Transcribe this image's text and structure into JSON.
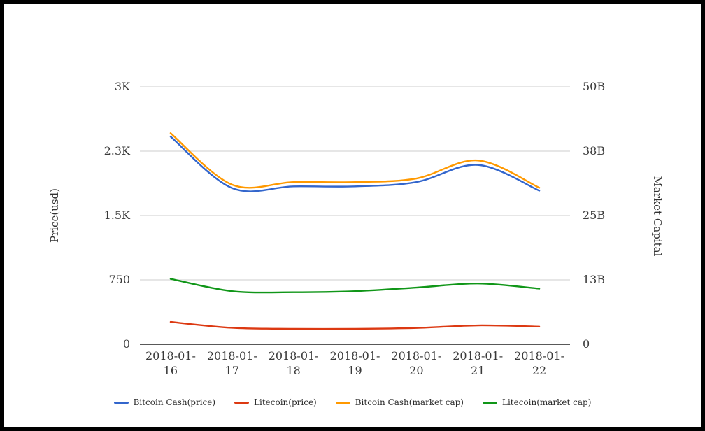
{
  "chart_data": {
    "type": "line",
    "smooth": true,
    "grid": true,
    "legend_position": "bottom",
    "x": [
      "2018-01-16",
      "2018-01-17",
      "2018-01-18",
      "2018-01-19",
      "2018-01-20",
      "2018-01-21",
      "2018-01-22"
    ],
    "series": [
      {
        "name": "Bitcoin Cash(price)",
        "axis": "left",
        "color": "#3366cc",
        "values": [
          2420,
          1820,
          1840,
          1840,
          1890,
          2090,
          1790
        ]
      },
      {
        "name": "Litecoin(price)",
        "axis": "left",
        "color": "#dc3912",
        "values": [
          260,
          192,
          180,
          180,
          190,
          220,
          205
        ]
      },
      {
        "name": "Bitcoin Cash(market cap)",
        "axis": "right",
        "color": "#ff9900",
        "unit": "billions",
        "values": [
          41.0,
          31.0,
          31.5,
          31.5,
          32.2,
          35.7,
          30.4
        ]
      },
      {
        "name": "Litecoin(market cap)",
        "axis": "right",
        "color": "#109618",
        "unit": "billions",
        "values": [
          12.7,
          10.3,
          10.1,
          10.3,
          11.0,
          11.8,
          10.8
        ]
      }
    ],
    "left_axis": {
      "label": "Price(usd)",
      "min": 0,
      "max": 3000,
      "tick_values": [
        0,
        750,
        1500,
        2250,
        3000
      ],
      "ticks": [
        "0",
        "750",
        "1.5K",
        "2.3K",
        "3K"
      ]
    },
    "right_axis": {
      "label": "Market Capital",
      "min": 0,
      "max": 50,
      "tick_values": [
        0,
        12.5,
        25,
        37.5,
        50
      ],
      "ticks": [
        "0",
        "13B",
        "25B",
        "38B",
        "50B"
      ]
    },
    "legend": [
      "Bitcoin Cash(price)",
      "Litecoin(price)",
      "Bitcoin Cash(market cap)",
      "Litecoin(market cap)"
    ]
  },
  "colors": {
    "gridline": "#cccccc",
    "axis_baseline": "#222222",
    "text": "#3a3a3a",
    "background": "#ffffff",
    "border": "#000000"
  }
}
